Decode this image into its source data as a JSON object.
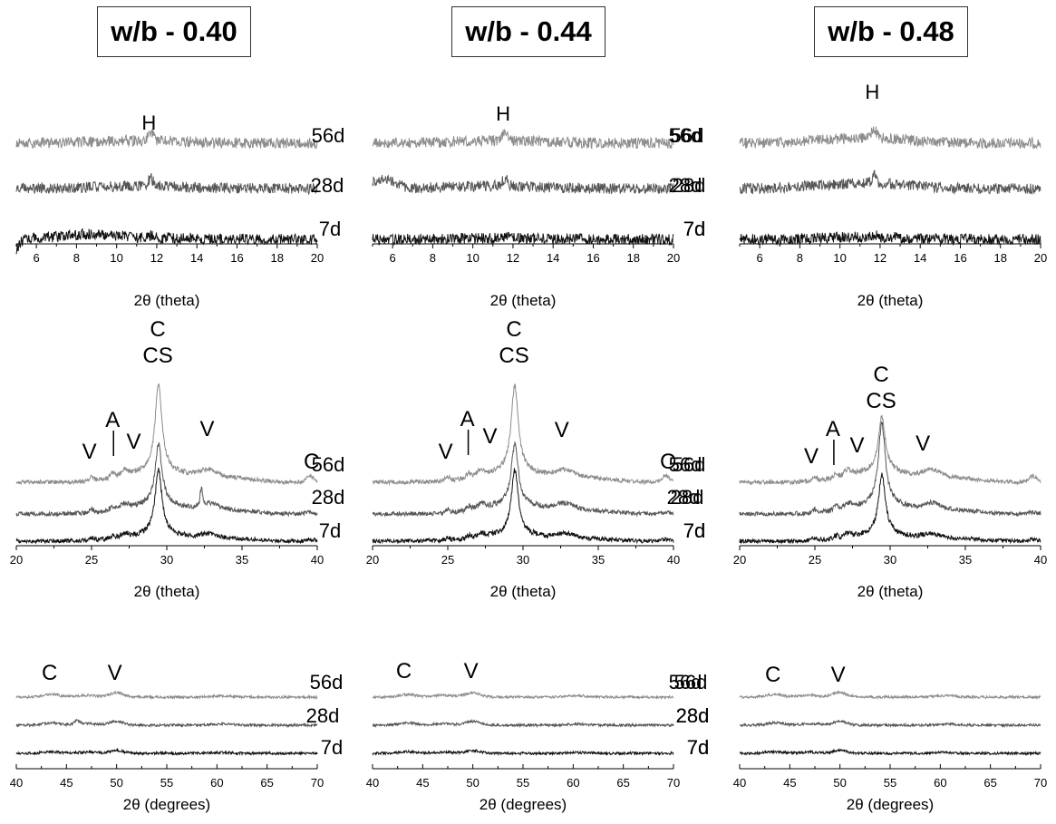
{
  "columns": [
    {
      "title": "w/b - 0.40"
    },
    {
      "title": "w/b - 0.44"
    },
    {
      "title": "w/b - 0.48"
    }
  ],
  "series_colors": {
    "56d": "#8c8c8c",
    "28d": "#555555",
    "7d": "#111111"
  },
  "chart_data": [
    {
      "type": "line",
      "column": "w/b - 0.40",
      "title": "",
      "xlabel": "2θ (theta)",
      "ylabel": "",
      "xlim": [
        5,
        20
      ],
      "xticks": [
        6,
        8,
        10,
        12,
        14,
        16,
        18,
        20
      ],
      "series": [
        {
          "name": "56d"
        },
        {
          "name": "28d"
        },
        {
          "name": "7d"
        }
      ],
      "peaks": [
        {
          "label": "H",
          "x": 11.7
        }
      ]
    },
    {
      "type": "line",
      "column": "w/b - 0.44",
      "title": "",
      "xlabel": "2θ (theta)",
      "ylabel": "",
      "xlim": [
        5,
        20
      ],
      "xticks": [
        6,
        8,
        10,
        12,
        14,
        16,
        18,
        20
      ],
      "series": [
        {
          "name": "56d"
        },
        {
          "name": "28d"
        },
        {
          "name": "7d"
        }
      ],
      "peaks": [
        {
          "label": "H",
          "x": 11.6
        }
      ]
    },
    {
      "type": "line",
      "column": "w/b - 0.48",
      "title": "",
      "xlabel": "2θ (theta)",
      "ylabel": "",
      "xlim": [
        5,
        20
      ],
      "xticks": [
        6,
        8,
        10,
        12,
        14,
        16,
        18,
        20
      ],
      "series": [
        {
          "name": "56d"
        },
        {
          "name": "28d"
        },
        {
          "name": "7d"
        }
      ],
      "peaks": [
        {
          "label": "H",
          "x": 11.7
        }
      ]
    },
    {
      "type": "line",
      "column": "w/b - 0.40",
      "title": "",
      "xlabel": "2θ (theta)",
      "ylabel": "",
      "xlim": [
        20,
        40
      ],
      "xticks": [
        20,
        25,
        30,
        35,
        40
      ],
      "series": [
        {
          "name": "56d"
        },
        {
          "name": "28d"
        },
        {
          "name": "7d"
        }
      ],
      "peaks": [
        {
          "label": "C",
          "x": 29.4
        },
        {
          "label": "CS",
          "x": 29.4
        },
        {
          "label": "V",
          "x": 25.1
        },
        {
          "label": "A",
          "x": 26.4
        },
        {
          "label": "V",
          "x": 27.2
        },
        {
          "label": "V",
          "x": 32.8
        },
        {
          "label": "C",
          "x": 39.5
        }
      ]
    },
    {
      "type": "line",
      "column": "w/b - 0.44",
      "title": "",
      "xlabel": "2θ (theta)",
      "ylabel": "",
      "xlim": [
        20,
        40
      ],
      "xticks": [
        20,
        25,
        30,
        35,
        40
      ],
      "series": [
        {
          "name": "56d"
        },
        {
          "name": "28d"
        },
        {
          "name": "7d"
        }
      ],
      "peaks": [
        {
          "label": "C",
          "x": 29.4
        },
        {
          "label": "CS",
          "x": 29.4
        },
        {
          "label": "V",
          "x": 25.1
        },
        {
          "label": "A",
          "x": 26.3
        },
        {
          "label": "V",
          "x": 27.2
        },
        {
          "label": "V",
          "x": 32.7
        },
        {
          "label": "C",
          "x": 39.5
        }
      ]
    },
    {
      "type": "line",
      "column": "w/b - 0.48",
      "title": "",
      "xlabel": "2θ (theta)",
      "ylabel": "",
      "xlim": [
        20,
        40
      ],
      "xticks": [
        20,
        25,
        30,
        35,
        40
      ],
      "series": [
        {
          "name": "56d"
        },
        {
          "name": "28d"
        },
        {
          "name": "7d"
        }
      ],
      "peaks": [
        {
          "label": "C",
          "x": 29.4
        },
        {
          "label": "CS",
          "x": 29.4
        },
        {
          "label": "V",
          "x": 25.0
        },
        {
          "label": "A",
          "x": 26.2
        },
        {
          "label": "V",
          "x": 27.2
        },
        {
          "label": "V",
          "x": 32.3
        }
      ]
    },
    {
      "type": "line",
      "column": "w/b - 0.40",
      "title": "",
      "xlabel": "2θ (degrees)",
      "ylabel": "",
      "xlim": [
        40,
        70
      ],
      "xticks": [
        40,
        45,
        50,
        55,
        60,
        65,
        70
      ],
      "series": [
        {
          "name": "56d"
        },
        {
          "name": "28d"
        },
        {
          "name": "7d"
        }
      ],
      "peaks": [
        {
          "label": "C",
          "x": 43.5
        },
        {
          "label": "V",
          "x": 50.0
        }
      ]
    },
    {
      "type": "line",
      "column": "w/b - 0.44",
      "title": "",
      "xlabel": "2θ (degrees)",
      "ylabel": "",
      "xlim": [
        40,
        70
      ],
      "xticks": [
        40,
        45,
        50,
        55,
        60,
        65,
        70
      ],
      "series": [
        {
          "name": "56d"
        },
        {
          "name": "28d"
        },
        {
          "name": "7d"
        }
      ],
      "peaks": [
        {
          "label": "C",
          "x": 43.3
        },
        {
          "label": "V",
          "x": 50.0
        }
      ]
    },
    {
      "type": "line",
      "column": "w/b - 0.48",
      "title": "",
      "xlabel": "2θ (degrees)",
      "ylabel": "",
      "xlim": [
        40,
        70
      ],
      "xticks": [
        40,
        45,
        50,
        55,
        60,
        65,
        70
      ],
      "series": [
        {
          "name": "56d"
        },
        {
          "name": "28d"
        },
        {
          "name": "7d"
        }
      ],
      "peaks": [
        {
          "label": "C",
          "x": 43.5
        },
        {
          "label": "V",
          "x": 50.0
        }
      ]
    }
  ]
}
